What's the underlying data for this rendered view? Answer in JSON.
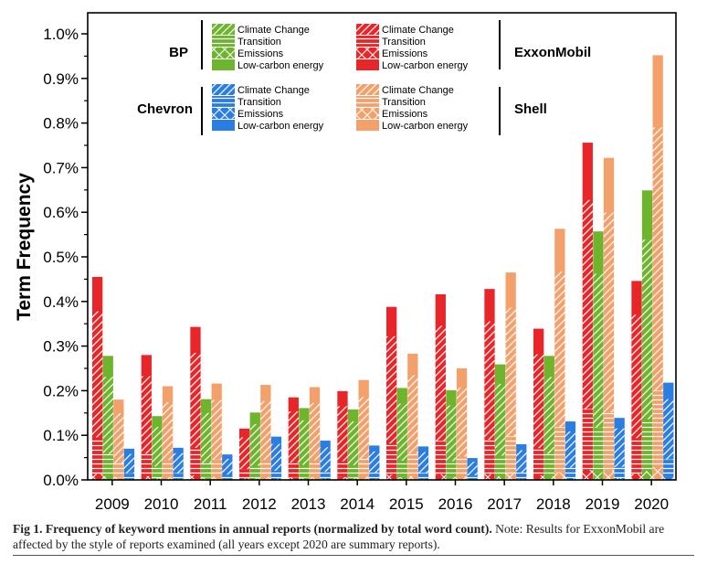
{
  "chart_data": {
    "type": "bar",
    "ylabel": "Term Frequency",
    "xlabel": "",
    "ylim": [
      0,
      1.0
    ],
    "yticks": [
      "0.0%",
      "0.1%",
      "0.2%",
      "0.3%",
      "0.4%",
      "0.5%",
      "0.6%",
      "0.7%",
      "0.8%",
      "0.9%",
      "1.0%"
    ],
    "categories": [
      "2009",
      "2010",
      "2011",
      "2012",
      "2013",
      "2014",
      "2015",
      "2016",
      "2017",
      "2018",
      "2019",
      "2020"
    ],
    "series": [
      {
        "name": "ExxonMobil",
        "color": "#e8262a",
        "values": [
          0.455,
          0.28,
          0.343,
          0.115,
          0.185,
          0.199,
          0.388,
          0.416,
          0.428,
          0.339,
          0.756,
          0.446
        ]
      },
      {
        "name": "BP",
        "color": "#6cb52d",
        "values": [
          0.278,
          0.143,
          0.181,
          0.151,
          0.161,
          0.158,
          0.206,
          0.201,
          0.259,
          0.278,
          0.557,
          0.649
        ]
      },
      {
        "name": "Shell",
        "color": "#f4a06b",
        "values": [
          0.18,
          0.21,
          0.216,
          0.213,
          0.208,
          0.224,
          0.283,
          0.25,
          0.465,
          0.563,
          0.722,
          0.952
        ]
      },
      {
        "name": "Chevron",
        "color": "#2a7de1",
        "values": [
          0.07,
          0.072,
          0.057,
          0.097,
          0.088,
          0.077,
          0.075,
          0.049,
          0.08,
          0.131,
          0.139,
          0.218
        ]
      }
    ],
    "legend": {
      "keywords": [
        "Climate Change",
        "Transition",
        "Emissions",
        "Low-carbon energy"
      ],
      "groups": [
        {
          "company": "BP",
          "series": "BP"
        },
        {
          "company": "ExxonMobil",
          "series": "ExxonMobil"
        },
        {
          "company": "Chevron",
          "series": "Chevron"
        },
        {
          "company": "Shell",
          "series": "Shell"
        }
      ]
    }
  },
  "caption": {
    "bold": "Fig 1. Frequency of keyword mentions in annual reports (normalized by total word count).",
    "text": " Note: Results for ExxonMobil are affected by the style of reports examined (all years except 2020 are summary reports)."
  }
}
